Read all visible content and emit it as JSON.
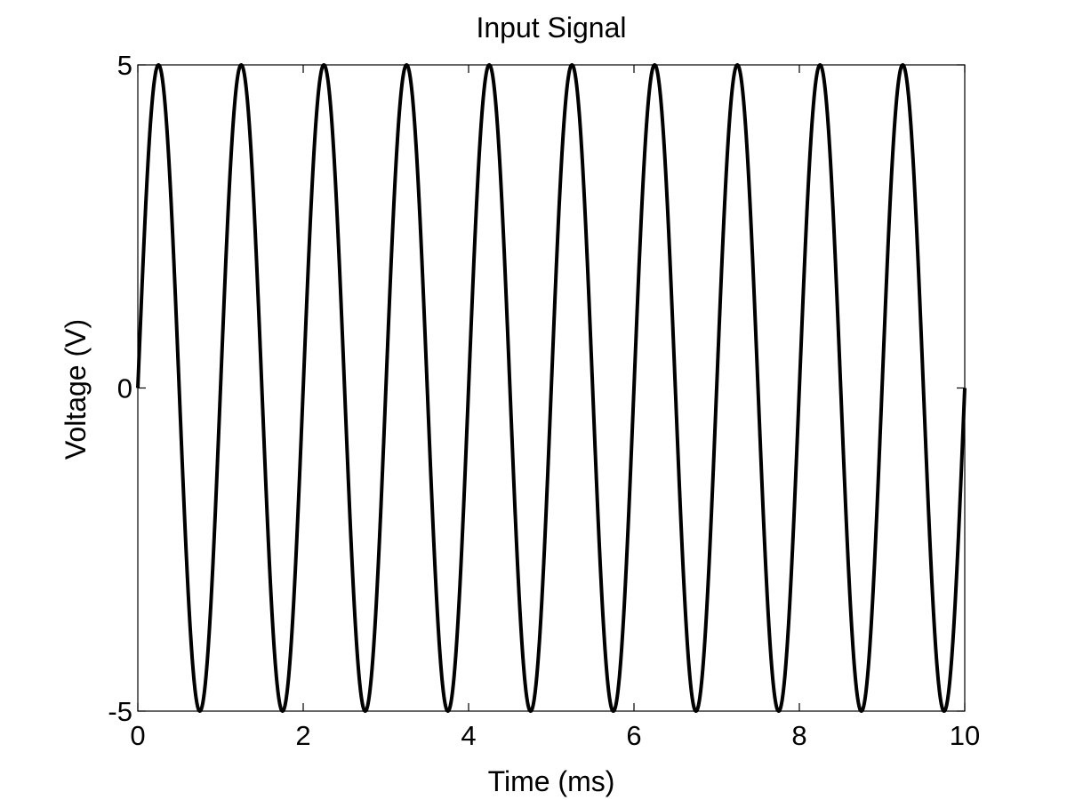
{
  "chart_data": {
    "type": "line",
    "title": "Input Signal",
    "xlabel": "Time (ms)",
    "ylabel": "Voltage (V)",
    "xlim": [
      0,
      10
    ],
    "ylim": [
      -5,
      5
    ],
    "xticks": [
      0,
      2,
      4,
      6,
      8,
      10
    ],
    "xtick_labels": [
      "0",
      "2",
      "4",
      "6",
      "8",
      "10"
    ],
    "yticks": [
      -5,
      0,
      5
    ],
    "ytick_labels": [
      "-5",
      "0",
      "5"
    ],
    "grid": false,
    "series": [
      {
        "function": "sine",
        "amplitude": 5,
        "frequency_khz": 1,
        "phase": 0,
        "x_range": [
          0,
          10
        ],
        "color": "#000000"
      }
    ]
  }
}
